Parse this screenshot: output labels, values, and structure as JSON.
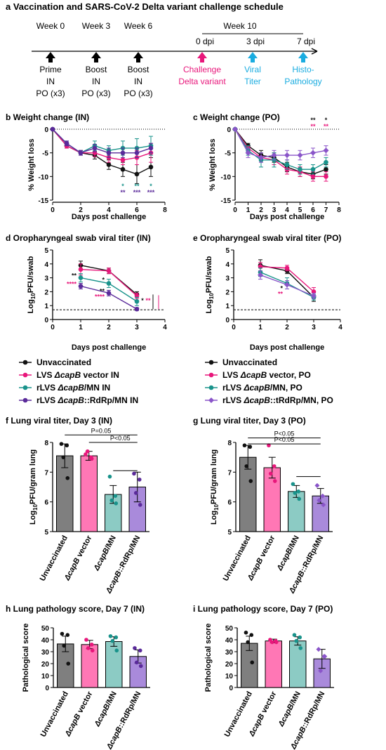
{
  "colors": {
    "unvaccinated": "#111111",
    "vector": "#e8177b",
    "mn": "#19938b",
    "rdrp": "#5a2a9a",
    "rdrp_po": "#8a55c9",
    "cyan": "#1aace0",
    "bar_unvacc": "#7f7f7f",
    "bar_vector": "#ff77b5",
    "bar_mn": "#8ccbc4",
    "bar_rdrp": "#a98adb"
  },
  "schedule": {
    "title": "a  Vaccination and SARS-CoV-2 Delta variant challenge schedule",
    "weeks": [
      "Week 0",
      "Week 3",
      "Week 6"
    ],
    "week10": "Week 10",
    "dpi": [
      "0 dpi",
      "3 dpi",
      "7 dpi"
    ],
    "events": [
      {
        "l1": "Prime",
        "l2": "IN",
        "l3": "PO (x3)"
      },
      {
        "l1": "Boost",
        "l2": "IN",
        "l3": "PO (x3)"
      },
      {
        "l1": "Boost",
        "l2": "IN",
        "l3": "PO (x3)"
      },
      {
        "l1": "Challenge",
        "l2": "Delta variant",
        "l3": ""
      },
      {
        "l1": "Viral",
        "l2": "Titer",
        "l3": ""
      },
      {
        "l1": "Histo-",
        "l2": "Pathology",
        "l3": ""
      }
    ]
  },
  "legend_in": [
    {
      "pre": "Unvaccinated",
      "it": "",
      "post": ""
    },
    {
      "pre": "LVS ",
      "it": "ΔcapB",
      "post": " vector IN"
    },
    {
      "pre": "rLVS ",
      "it": "ΔcapB",
      "post": "/MN IN"
    },
    {
      "pre": "rLVS ",
      "it": "ΔcapB",
      "post": "::RdRp/MN IN"
    }
  ],
  "legend_po": [
    {
      "pre": "Unvaccinated",
      "it": "",
      "post": ""
    },
    {
      "pre": "LVS ",
      "it": "ΔcapB",
      "post": " vector,  PO"
    },
    {
      "pre": "rLVS ",
      "it": "ΔcapB",
      "post": "/MN, PO"
    },
    {
      "pre": "rLVS ",
      "it": "ΔcapB",
      "post": "::tRdRp/MN, PO"
    }
  ],
  "bar_categories": [
    {
      "pre": "Unvaccinated",
      "it": "",
      "post": ""
    },
    {
      "pre": "",
      "it": "ΔcapB",
      "post": " vector"
    },
    {
      "pre": "",
      "it": "ΔcapB",
      "post": "/MN"
    },
    {
      "pre": "",
      "it": "ΔcapB",
      "post": "::RdRp/MN"
    }
  ],
  "chart_data": [
    {
      "type": "line",
      "panel": "b",
      "title": "b Weight change (IN)",
      "xlabel": "Days post challenge",
      "ylabel": "% Weight loss",
      "xlim": [
        0,
        8
      ],
      "ylim": [
        -15,
        0
      ],
      "xticks": [
        "0",
        "2",
        "4",
        "6",
        "8"
      ],
      "yticks": [
        "0",
        "-5",
        "-10",
        "-15"
      ],
      "x": [
        0,
        1,
        2,
        3,
        4,
        5,
        6,
        7
      ],
      "series": [
        {
          "values": [
            0,
            -3.5,
            -5,
            -5.5,
            -7.5,
            -8.5,
            -9.5,
            -8
          ],
          "err": [
            0,
            0.5,
            0.5,
            0.8,
            1,
            1.5,
            2,
            2
          ]
        },
        {
          "values": [
            0,
            -3.5,
            -5,
            -5,
            -6,
            -6.5,
            -6,
            -5
          ],
          "err": [
            0,
            0.5,
            0.5,
            0.8,
            1,
            1,
            1.5,
            2
          ]
        },
        {
          "values": [
            0,
            -3,
            -5,
            -3.5,
            -4.5,
            -4,
            -4,
            -3.5
          ],
          "err": [
            0,
            0.5,
            0.5,
            1,
            1,
            1.5,
            2,
            2
          ]
        },
        {
          "values": [
            0,
            -3,
            -5,
            -4,
            -5,
            -5,
            -5,
            -4
          ],
          "err": [
            0,
            0.5,
            0.5,
            0.8,
            1,
            1,
            1,
            1
          ]
        }
      ],
      "annotations": [
        {
          "x": 5,
          "row": 0,
          "text": "*",
          "color": "mn"
        },
        {
          "x": 5,
          "row": 1,
          "text": "**",
          "color": "rdrp"
        },
        {
          "x": 6,
          "row": 0,
          "text": "**",
          "color": "mn"
        },
        {
          "x": 6,
          "row": 1,
          "text": "***",
          "color": "rdrp"
        },
        {
          "x": 7,
          "row": 0,
          "text": "*",
          "color": "mn"
        },
        {
          "x": 7,
          "row": 1,
          "text": "***",
          "color": "rdrp"
        }
      ]
    },
    {
      "type": "line",
      "panel": "c",
      "title": "c Weight change (PO)",
      "xlabel": "Days post challenge",
      "ylabel": "% Weight loss",
      "xlim": [
        0,
        8
      ],
      "ylim": [
        -15,
        0
      ],
      "xticks": [
        "0",
        "1",
        "2",
        "3",
        "4",
        "5",
        "6",
        "7",
        "8"
      ],
      "yticks": [
        "0",
        "-5",
        "-10",
        "-15"
      ],
      "x": [
        0,
        1,
        2,
        3,
        4,
        5,
        6,
        7
      ],
      "series": [
        {
          "values": [
            0,
            -3.5,
            -5.5,
            -6,
            -8,
            -9,
            -9.5,
            -8.5
          ],
          "err": [
            0,
            0.5,
            1,
            1,
            1,
            1,
            1,
            1
          ]
        },
        {
          "values": [
            0,
            -4,
            -6,
            -6.5,
            -8.5,
            -9,
            -10,
            -10
          ],
          "err": [
            0,
            0.5,
            1,
            1,
            1,
            1,
            1,
            1
          ]
        },
        {
          "values": [
            0,
            -4.5,
            -6.5,
            -6.5,
            -7.5,
            -8.5,
            -8.5,
            -7
          ],
          "err": [
            0,
            1,
            1.5,
            1.5,
            1,
            1,
            1,
            1
          ]
        },
        {
          "values": [
            0,
            -5,
            -6,
            -5.5,
            -5.5,
            -5.5,
            -5,
            -4.5
          ],
          "err": [
            0,
            1,
            1,
            1,
            1,
            1,
            1,
            1
          ]
        }
      ],
      "annotations": [
        {
          "x": 6,
          "row": 0,
          "text": "**",
          "color": "unvaccinated"
        },
        {
          "x": 6,
          "row": 1,
          "text": "**",
          "color": "vector"
        },
        {
          "x": 7,
          "row": 0,
          "text": "*",
          "color": "unvaccinated"
        },
        {
          "x": 7,
          "row": 1,
          "text": "**",
          "color": "vector"
        }
      ]
    },
    {
      "type": "line",
      "panel": "d",
      "title": "d Oropharyngeal swab viral titer (IN)",
      "xlabel": "Days post challenge",
      "ylabel": "Log10PFU/swab",
      "xlim": [
        0,
        4
      ],
      "ylim": [
        0,
        5
      ],
      "xticks": [
        "0",
        "1",
        "2",
        "3",
        "4"
      ],
      "yticks": [
        "0",
        "1",
        "2",
        "3",
        "4",
        "5"
      ],
      "x": [
        1,
        2,
        3
      ],
      "lod": 0.7,
      "series": [
        {
          "values": [
            3.9,
            3.5,
            1.8
          ],
          "err": [
            0.3,
            0.2,
            0.2
          ]
        },
        {
          "values": [
            3.6,
            3.5,
            1.7
          ],
          "err": [
            0.4,
            0.2,
            0.2
          ]
        },
        {
          "values": [
            3.0,
            2.6,
            1.3
          ],
          "err": [
            0.3,
            0.3,
            0.3
          ]
        },
        {
          "values": [
            2.4,
            1.9,
            0.75
          ],
          "err": [
            0.2,
            0.2,
            0.1
          ]
        }
      ],
      "annotations": [
        {
          "x": 1,
          "text": "**",
          "color": "unvaccinated",
          "y": 3.0
        },
        {
          "x": 1,
          "text": "****",
          "color": "vector",
          "y": 2.4
        },
        {
          "x": 2,
          "text": "*",
          "color": "unvaccinated",
          "y": 2.7
        },
        {
          "x": 2,
          "text": "**",
          "color": "unvaccinated",
          "y": 1.9
        },
        {
          "x": 2,
          "text": "****",
          "color": "vector",
          "y": 1.5
        },
        {
          "x": 3.2,
          "text": "*",
          "color": "unvaccinated",
          "y": 1.2
        },
        {
          "x": 3.4,
          "text": "**",
          "color": "vector",
          "y": 1.2
        }
      ]
    },
    {
      "type": "line",
      "panel": "e",
      "title": "e Oropharyngeal swab viral titer (PO)",
      "xlabel": "Days post challenge",
      "ylabel": "Log10PFU/swab",
      "xlim": [
        0,
        4
      ],
      "ylim": [
        0,
        5
      ],
      "xticks": [
        "0",
        "1",
        "2",
        "3",
        "4"
      ],
      "yticks": [
        "0",
        "1",
        "2",
        "3",
        "4",
        "5"
      ],
      "x": [
        1,
        2,
        3
      ],
      "lod": 0.7,
      "series": [
        {
          "values": [
            3.9,
            3.5,
            1.6
          ],
          "err": [
            0.4,
            0.2,
            0.3
          ]
        },
        {
          "values": [
            3.8,
            3.7,
            2.0
          ],
          "err": [
            0.3,
            0.2,
            0.3
          ]
        },
        {
          "values": [
            3.4,
            2.6,
            1.6
          ],
          "err": [
            0.3,
            0.4,
            0.2
          ]
        },
        {
          "values": [
            3.2,
            2.5,
            1.7
          ],
          "err": [
            0.3,
            0.3,
            0.2
          ]
        }
      ],
      "annotations": [
        {
          "x": 2,
          "text": "*",
          "color": "unvaccinated",
          "y": 2.1
        },
        {
          "x": 2,
          "text": "**",
          "color": "vector",
          "y": 1.7
        }
      ]
    },
    {
      "type": "bar",
      "panel": "f",
      "title": "f Lung viral titer, Day 3 (IN)",
      "ylabel": "Log10PFU/gram lung",
      "ylim": [
        5,
        8
      ],
      "yticks": [
        "5",
        "6",
        "7",
        "8"
      ],
      "values": [
        7.55,
        7.55,
        6.25,
        6.5
      ],
      "err": [
        0.4,
        0.15,
        0.3,
        0.5
      ],
      "points": [
        [
          7.95,
          7.9,
          7.5,
          6.8
        ],
        [
          7.6,
          7.5,
          7.7,
          7.45
        ],
        [
          6.85,
          6.2,
          6.05,
          5.95
        ],
        [
          6.95,
          6.75,
          6.3,
          5.9
        ]
      ],
      "brackets": [
        {
          "from": 0,
          "to": 3,
          "y": 8.25,
          "label": "P=0.05"
        },
        {
          "from": 1,
          "to": 3,
          "y": 8.0,
          "label": "P<0.05"
        },
        {
          "from": 2,
          "to": 3,
          "y": 7.05,
          "label": ""
        }
      ]
    },
    {
      "type": "bar",
      "panel": "g",
      "title": "g Lung viral titer, Day 3 (PO)",
      "ylabel": "Log10PFU/gram lung",
      "ylim": [
        5,
        8
      ],
      "yticks": [
        "5",
        "6",
        "7",
        "8"
      ],
      "values": [
        7.5,
        7.15,
        6.35,
        6.2
      ],
      "err": [
        0.4,
        0.35,
        0.2,
        0.25
      ],
      "points": [
        [
          7.9,
          7.85,
          7.2,
          6.7
        ],
        [
          7.9,
          7.2,
          6.95,
          6.7
        ],
        [
          6.6,
          6.35,
          6.3,
          6.1
        ],
        [
          6.55,
          6.2,
          6.05,
          5.9
        ]
      ],
      "brackets": [
        {
          "from": 0,
          "to": 3,
          "y": 8.15,
          "label": "P<0.05"
        },
        {
          "from": 0,
          "to": 3,
          "y": 7.95,
          "label": "P<0.05"
        },
        {
          "from": 2,
          "to": 3,
          "y": 6.85,
          "label": ""
        }
      ]
    },
    {
      "type": "bar",
      "panel": "h",
      "title": "h Lung pathology score, Day 7 (IN)",
      "ylabel": "Pathological score",
      "ylim": [
        0,
        50
      ],
      "yticks": [
        "0",
        "10",
        "20",
        "30",
        "40",
        "50"
      ],
      "values": [
        36.5,
        36,
        38.5,
        26
      ],
      "err": [
        6.5,
        3.5,
        4,
        5.5
      ],
      "points": [
        [
          45,
          44,
          35,
          20
        ],
        [
          40,
          36,
          33,
          31
        ],
        [
          43,
          42,
          39,
          31
        ],
        [
          33,
          31,
          21,
          18
        ]
      ],
      "brackets": []
    },
    {
      "type": "bar",
      "panel": "i",
      "title": "i Lung pathology score, Day 7 (PO)",
      "ylabel": "Pathological score",
      "ylim": [
        0,
        50
      ],
      "yticks": [
        "0",
        "10",
        "20",
        "30",
        "40",
        "50"
      ],
      "values": [
        37,
        39,
        39,
        24
      ],
      "err": [
        6,
        1.5,
        3.5,
        8
      ],
      "points": [
        [
          46,
          44,
          38,
          21
        ],
        [
          40,
          39,
          38,
          38
        ],
        [
          44,
          42,
          39,
          33
        ],
        [
          32,
          26,
          14,
          26
        ]
      ],
      "brackets": []
    }
  ]
}
